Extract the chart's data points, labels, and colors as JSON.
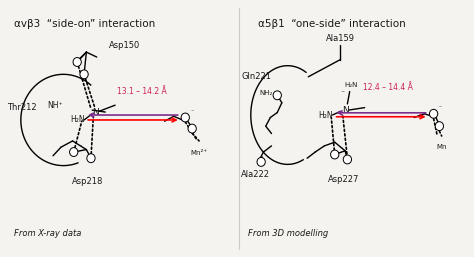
{
  "left_title": "αvβ3  “side-on” interaction",
  "right_title": "α5β1  “one-side” interaction",
  "left_caption": "From X-ray data",
  "right_caption": "From 3D modelling",
  "left_distance": "13.1 – 14.2 Å",
  "right_distance": "12.4 – 14.4 Å",
  "bg_color": "#f5f3ef",
  "text_color": "#1a1a1a",
  "distance_color": "#cc2255"
}
